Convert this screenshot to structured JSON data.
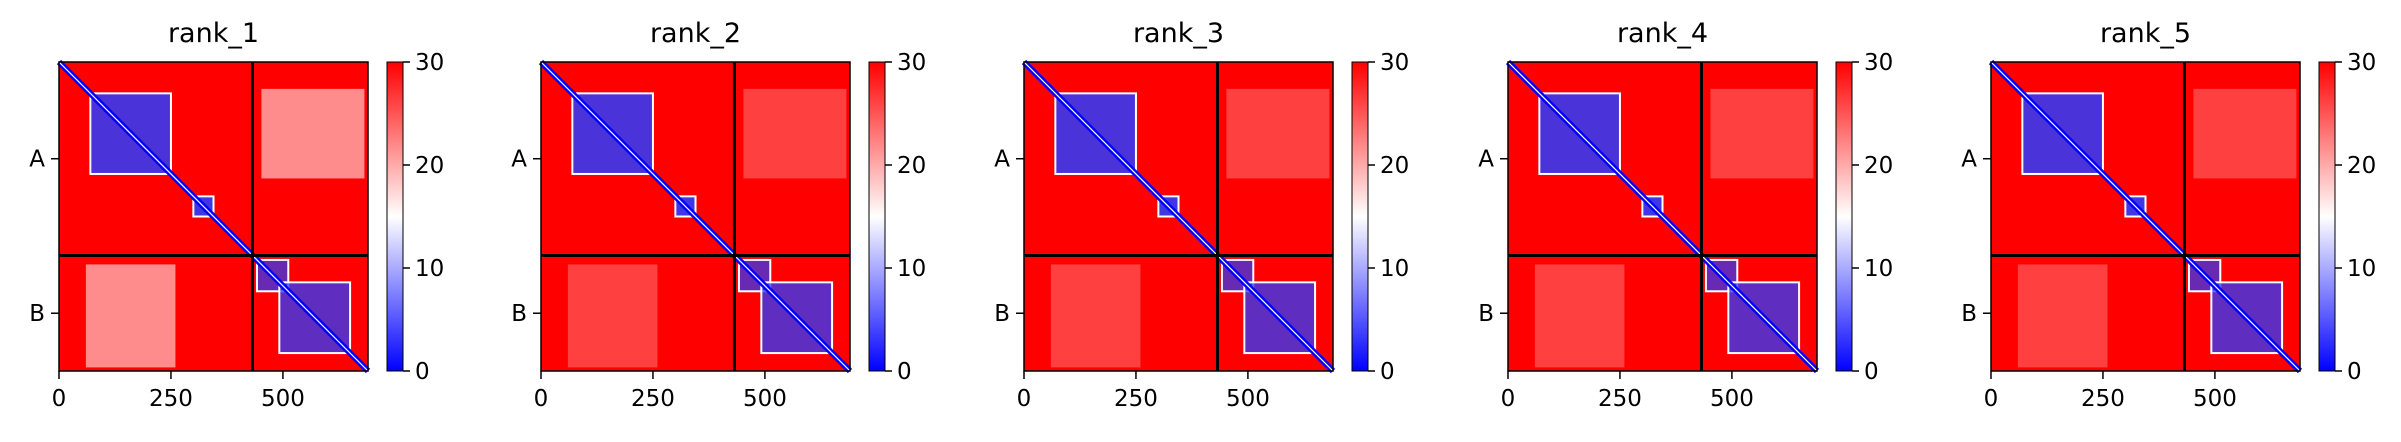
{
  "chart_data": {
    "type": "heatmap",
    "colorbar": {
      "range": [
        0,
        30
      ],
      "ticks": [
        "0",
        "10",
        "20",
        "30"
      ],
      "colormap": [
        "#0000ff",
        "#ffffff",
        "#ff0000"
      ]
    },
    "chain_boundary": 432,
    "length": 690,
    "x_ticks": [
      "0",
      "250",
      "500"
    ],
    "x_tick_values": [
      0,
      250,
      500
    ],
    "y_labels": [
      "A",
      "B"
    ],
    "panels": [
      {
        "title": "rank_1"
      },
      {
        "title": "rank_2"
      },
      {
        "title": "rank_3"
      },
      {
        "title": "rank_4"
      },
      {
        "title": "rank_5"
      }
    ]
  }
}
